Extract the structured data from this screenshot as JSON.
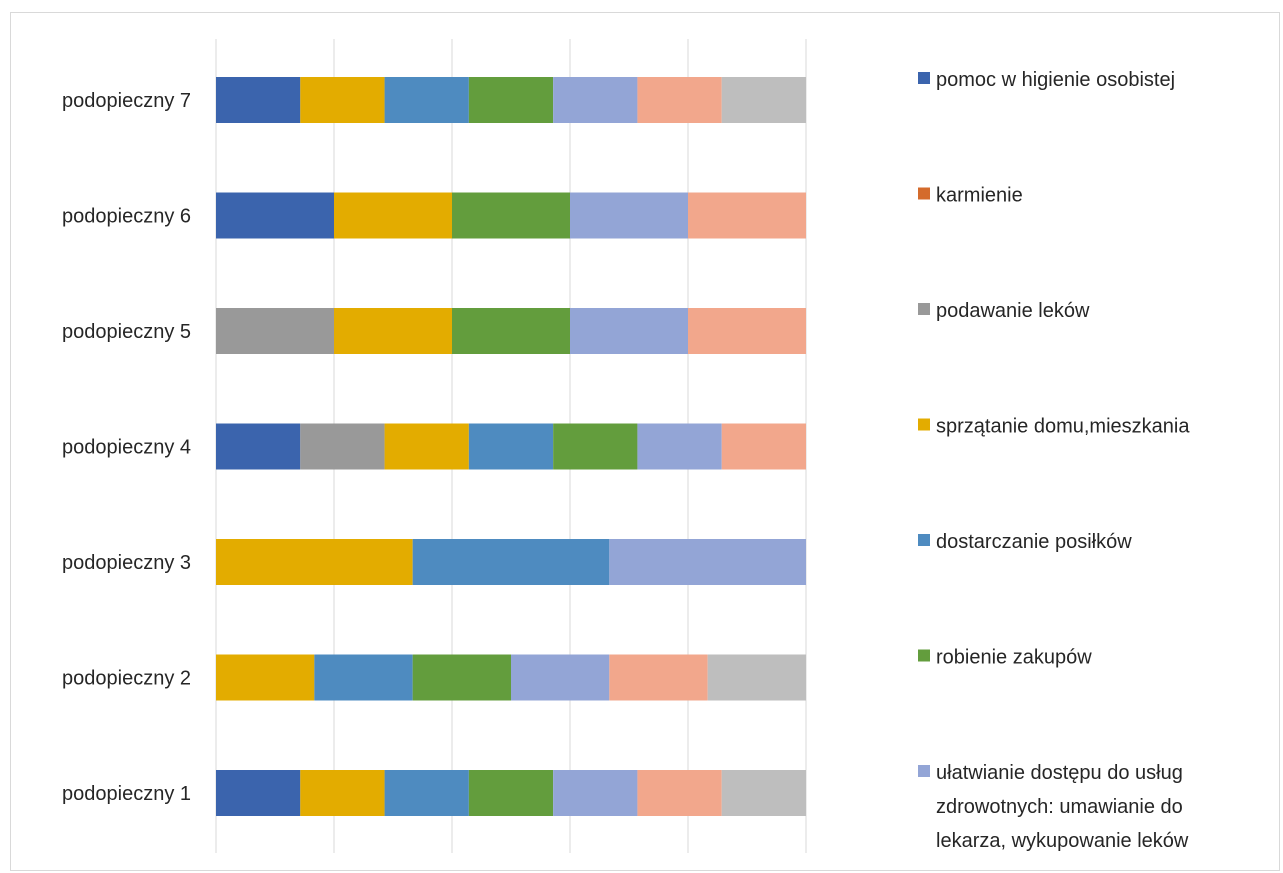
{
  "chart_data": {
    "type": "bar",
    "orientation": "horizontal",
    "stacked": true,
    "stack_mode": "percent",
    "title": "",
    "xlabel": "",
    "ylabel": "",
    "xlim": [
      0,
      100
    ],
    "grid": true,
    "legend_position": "right",
    "categories": [
      "podopieczny 7",
      "podopieczny 6",
      "podopieczny 5",
      "podopieczny 4",
      "podopieczny 3",
      "podopieczny 2",
      "podopieczny 1"
    ],
    "series": [
      {
        "name": "pomoc w higienie osobistej",
        "color": "#3b64ad",
        "values": [
          1,
          1,
          0,
          1,
          0,
          0,
          1
        ]
      },
      {
        "name": "karmienie",
        "color": "#d46b2c",
        "values": [
          0,
          0,
          0,
          0,
          0,
          0,
          0
        ]
      },
      {
        "name": "podawanie leków",
        "color": "#999999",
        "values": [
          0,
          0,
          1,
          1,
          0,
          0,
          0
        ]
      },
      {
        "name": "sprzątanie domu,mieszkania",
        "color": "#e3ac00",
        "values": [
          1,
          1,
          1,
          1,
          1,
          1,
          1
        ]
      },
      {
        "name": "dostarczanie posiłków",
        "color": "#4e8bc0",
        "values": [
          1,
          0,
          0,
          1,
          1,
          1,
          1
        ]
      },
      {
        "name": "robienie zakupów",
        "color": "#639d3d",
        "values": [
          1,
          1,
          1,
          1,
          0,
          1,
          1
        ]
      },
      {
        "name": "ułatwianie dostępu do usług zdrowotnych: umawianie do lekarza, wykupowanie leków",
        "legend_lines": [
          "ułatwianie dostępu do usług",
          "zdrowotnych: umawianie do",
          "lekarza, wykupowanie leków"
        ],
        "color": "#93a5d6",
        "values": [
          1,
          1,
          1,
          1,
          1,
          1,
          1
        ]
      },
      {
        "name": "",
        "color": "#f2a78c",
        "values": [
          1,
          1,
          1,
          1,
          0,
          1,
          1
        ]
      },
      {
        "name": "",
        "color": "#bebebe",
        "values": [
          1,
          0,
          0,
          0,
          0,
          1,
          1
        ]
      }
    ]
  }
}
